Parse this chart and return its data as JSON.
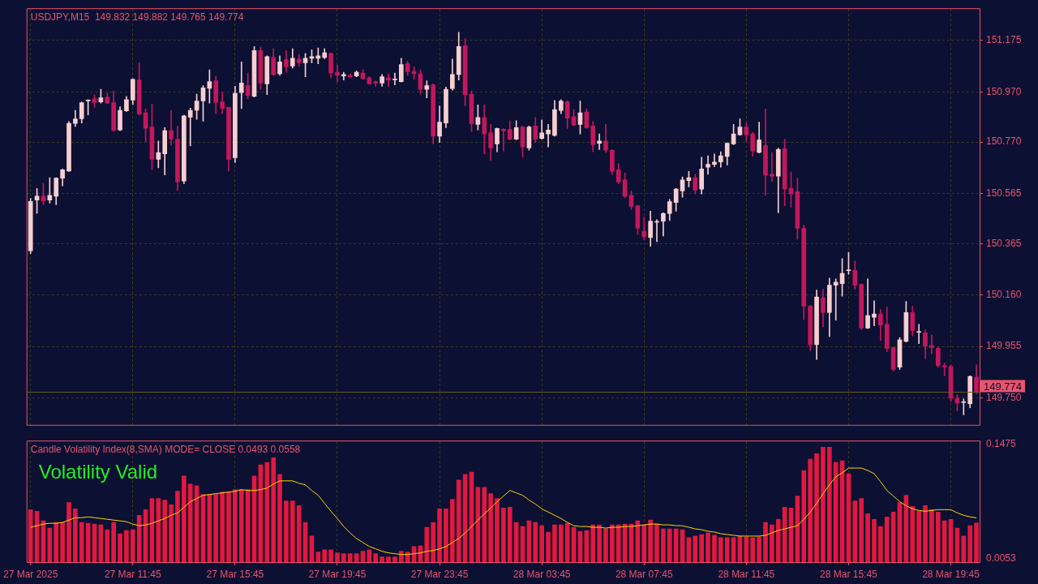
{
  "chart_data": [
    {
      "type": "candlestick",
      "title": "USDJPY,M15  149.832 149.882 149.765 149.774",
      "categories": [
        null,
        null,
        null,
        null,
        null,
        null,
        null,
        null,
        null,
        null,
        null,
        null,
        null,
        null,
        null,
        null,
        null,
        null,
        null,
        null,
        null,
        null,
        null,
        null,
        null,
        null,
        null,
        null,
        null,
        null,
        null,
        null,
        null,
        null,
        null,
        null,
        null,
        null,
        null,
        null,
        null,
        null,
        null,
        null,
        null,
        null,
        null,
        null,
        null,
        null,
        null,
        null,
        null,
        null,
        null,
        null,
        null,
        null,
        null,
        null,
        null,
        null,
        null,
        null,
        null,
        null,
        null,
        null,
        null,
        null,
        null,
        null,
        null,
        null,
        null,
        null,
        null,
        null,
        null,
        null,
        null,
        null,
        null,
        null,
        null,
        null,
        null,
        null,
        null,
        null,
        null,
        null,
        null,
        null,
        null,
        null,
        null,
        null,
        null,
        null,
        null,
        null,
        null,
        null,
        null,
        null,
        null,
        null,
        null,
        null,
        null,
        null,
        null,
        null,
        null,
        null,
        null,
        null,
        null,
        null,
        null,
        null,
        null,
        null,
        null,
        null,
        null,
        null,
        null,
        null,
        null,
        null,
        null,
        null,
        null,
        null,
        null,
        null,
        null,
        null,
        null,
        null,
        null,
        null,
        null,
        null,
        null,
        null,
        null
      ],
      "ohlc": [
        [
          150.336,
          150.545,
          150.325,
          150.533
        ],
        [
          150.538,
          150.585,
          150.486,
          150.554
        ],
        [
          150.554,
          150.605,
          150.52,
          150.535
        ],
        [
          150.538,
          150.628,
          150.526,
          150.557
        ],
        [
          150.554,
          150.628,
          150.52,
          150.626
        ],
        [
          150.626,
          150.662,
          150.595,
          150.659
        ],
        [
          150.654,
          150.852,
          150.652,
          150.844
        ],
        [
          150.844,
          150.896,
          150.832,
          150.862
        ],
        [
          150.863,
          150.929,
          150.846,
          150.927
        ],
        [
          150.934,
          150.939,
          150.878,
          150.936
        ],
        [
          150.942,
          150.958,
          150.908,
          150.927
        ],
        [
          150.93,
          150.98,
          150.925,
          150.946
        ],
        [
          150.949,
          150.964,
          150.923,
          150.925
        ],
        [
          150.927,
          150.974,
          150.814,
          150.816
        ],
        [
          150.818,
          150.911,
          150.815,
          150.896
        ],
        [
          150.894,
          150.952,
          150.892,
          150.939
        ],
        [
          150.937,
          151.022,
          150.919,
          151.02
        ],
        [
          151.017,
          151.086,
          150.879,
          150.881
        ],
        [
          150.886,
          150.902,
          150.771,
          150.825
        ],
        [
          150.83,
          150.921,
          150.66,
          150.701
        ],
        [
          150.701,
          150.774,
          150.667,
          150.728
        ],
        [
          150.723,
          150.827,
          150.639,
          150.815
        ],
        [
          150.815,
          150.896,
          150.757,
          150.782
        ],
        [
          150.781,
          150.834,
          150.576,
          150.611
        ],
        [
          150.614,
          150.877,
          150.604,
          150.874
        ],
        [
          150.869,
          150.905,
          150.754,
          150.896
        ],
        [
          150.897,
          150.961,
          150.86,
          150.933
        ],
        [
          150.934,
          150.995,
          150.853,
          150.986
        ],
        [
          150.984,
          151.058,
          150.925,
          151.011
        ],
        [
          151.014,
          151.033,
          150.883,
          150.927
        ],
        [
          150.93,
          150.97,
          150.883,
          150.903
        ],
        [
          150.908,
          150.91,
          150.654,
          150.701
        ],
        [
          150.707,
          150.992,
          150.688,
          150.964
        ],
        [
          150.967,
          151.089,
          150.903,
          151.005
        ],
        [
          150.995,
          151.045,
          150.942,
          150.956
        ],
        [
          150.952,
          151.151,
          150.949,
          151.135
        ],
        [
          151.135,
          151.148,
          150.98,
          151.005
        ],
        [
          151.002,
          151.114,
          150.959,
          151.11
        ],
        [
          151.107,
          151.142,
          151.036,
          151.039
        ],
        [
          151.042,
          151.114,
          151.036,
          151.089
        ],
        [
          151.098,
          151.135,
          151.048,
          151.07
        ],
        [
          151.073,
          151.142,
          151.065,
          151.104
        ],
        [
          151.101,
          151.12,
          151.073,
          151.086
        ],
        [
          151.086,
          151.123,
          151.03,
          151.104
        ],
        [
          151.104,
          151.138,
          151.086,
          151.11
        ],
        [
          151.104,
          151.145,
          151.082,
          151.114
        ],
        [
          151.107,
          151.142,
          151.102,
          151.126
        ],
        [
          151.123,
          151.125,
          151.026,
          151.045
        ],
        [
          151.048,
          151.076,
          151.011,
          151.036
        ],
        [
          151.033,
          151.048,
          151.017,
          151.039
        ],
        [
          151.036,
          151.042,
          151.026,
          151.03
        ],
        [
          151.033,
          151.054,
          151.03,
          151.048
        ],
        [
          151.045,
          151.058,
          151.02,
          151.023
        ],
        [
          151.026,
          151.03,
          151.0,
          151.002
        ],
        [
          151.011,
          151.013,
          150.992,
          151.005
        ],
        [
          151.005,
          151.039,
          150.992,
          151.03
        ],
        [
          151.026,
          151.042,
          150.992,
          151.017
        ],
        [
          151.018,
          151.045,
          150.998,
          151.02
        ],
        [
          151.011,
          151.104,
          151.009,
          151.079
        ],
        [
          151.082,
          151.092,
          151.036,
          151.051
        ],
        [
          151.051,
          151.07,
          151.02,
          151.042
        ],
        [
          151.042,
          151.058,
          150.961,
          150.98
        ],
        [
          150.98,
          151.014,
          150.946,
          150.995
        ],
        [
          150.998,
          151.002,
          150.762,
          150.793
        ],
        [
          150.793,
          150.914,
          150.768,
          150.849
        ],
        [
          150.846,
          150.989,
          150.827,
          150.98
        ],
        [
          150.983,
          151.101,
          150.977,
          151.039
        ],
        [
          151.039,
          151.207,
          151.017,
          151.151
        ],
        [
          151.154,
          151.182,
          150.914,
          150.958
        ],
        [
          150.961,
          150.974,
          150.812,
          150.843
        ],
        [
          150.84,
          150.918,
          150.818,
          150.868
        ],
        [
          150.868,
          150.918,
          150.722,
          150.802
        ],
        [
          150.806,
          150.84,
          150.697,
          150.746
        ],
        [
          150.762,
          150.826,
          150.731,
          150.824
        ],
        [
          150.821,
          150.823,
          150.734,
          150.815
        ],
        [
          150.821,
          150.855,
          150.778,
          150.781
        ],
        [
          150.781,
          150.855,
          150.779,
          150.827
        ],
        [
          150.83,
          150.833,
          150.709,
          150.75
        ],
        [
          150.746,
          150.834,
          150.737,
          150.83
        ],
        [
          150.834,
          150.868,
          150.768,
          150.781
        ],
        [
          150.784,
          150.858,
          150.781,
          150.806
        ],
        [
          150.802,
          150.84,
          150.75,
          150.818
        ],
        [
          150.796,
          150.936,
          150.793,
          150.899
        ],
        [
          150.896,
          150.939,
          150.883,
          150.933
        ],
        [
          150.93,
          150.935,
          150.824,
          150.865
        ],
        [
          150.871,
          150.899,
          150.834,
          150.837
        ],
        [
          150.84,
          150.933,
          150.802,
          150.886
        ],
        [
          150.89,
          150.902,
          150.825,
          150.827
        ],
        [
          150.834,
          150.852,
          150.731,
          150.759
        ],
        [
          150.765,
          150.802,
          150.74,
          150.774
        ],
        [
          150.774,
          150.84,
          150.728,
          150.737
        ],
        [
          150.737,
          150.74,
          150.641,
          150.653
        ],
        [
          150.659,
          150.684,
          150.603,
          150.61
        ],
        [
          150.619,
          150.647,
          150.547,
          150.554
        ],
        [
          150.557,
          150.575,
          150.501,
          150.513
        ],
        [
          150.516,
          150.518,
          150.401,
          150.426
        ],
        [
          150.414,
          150.47,
          150.379,
          150.392
        ],
        [
          150.389,
          150.494,
          150.354,
          150.454
        ],
        [
          150.45,
          150.46,
          150.373,
          150.453
        ],
        [
          150.454,
          150.488,
          150.395,
          150.485
        ],
        [
          150.485,
          150.541,
          150.457,
          150.532
        ],
        [
          150.529,
          150.585,
          150.494,
          150.582
        ],
        [
          150.575,
          150.631,
          150.55,
          150.619
        ],
        [
          150.616,
          150.653,
          150.591,
          150.628
        ],
        [
          150.628,
          150.641,
          150.563,
          150.578
        ],
        [
          150.582,
          150.709,
          150.563,
          150.662
        ],
        [
          150.669,
          150.715,
          150.641,
          150.681
        ],
        [
          150.681,
          150.722,
          150.672,
          150.69
        ],
        [
          150.69,
          150.731,
          150.669,
          150.715
        ],
        [
          150.712,
          150.767,
          150.678,
          150.765
        ],
        [
          150.762,
          150.84,
          150.759,
          150.802
        ],
        [
          150.799,
          150.862,
          150.796,
          150.83
        ],
        [
          150.83,
          150.846,
          150.771,
          150.799
        ],
        [
          150.802,
          150.809,
          150.713,
          150.734
        ],
        [
          150.728,
          150.849,
          150.726,
          150.778
        ],
        [
          150.756,
          150.902,
          150.557,
          150.638
        ],
        [
          150.641,
          150.728,
          150.613,
          150.634
        ],
        [
          150.634,
          150.746,
          150.488,
          150.74
        ],
        [
          150.743,
          150.781,
          150.516,
          150.582
        ],
        [
          150.585,
          150.65,
          150.51,
          150.563
        ],
        [
          150.572,
          150.625,
          150.382,
          150.426
        ],
        [
          150.426,
          150.438,
          150.062,
          150.115
        ],
        [
          150.115,
          150.118,
          149.938,
          149.962
        ],
        [
          149.962,
          150.18,
          149.903,
          150.152
        ],
        [
          150.149,
          150.183,
          150.034,
          150.09
        ],
        [
          150.09,
          150.227,
          149.994,
          150.199
        ],
        [
          150.199,
          150.224,
          150.059,
          150.211
        ],
        [
          150.205,
          150.305,
          150.155,
          150.246
        ],
        [
          150.257,
          150.33,
          150.242,
          150.259
        ],
        [
          150.258,
          150.295,
          150.183,
          150.199
        ],
        [
          150.202,
          150.204,
          150.021,
          150.028
        ],
        [
          150.028,
          150.224,
          150.026,
          150.078
        ],
        [
          150.071,
          150.137,
          150.037,
          150.084
        ],
        [
          150.084,
          150.102,
          149.978,
          150.04
        ],
        [
          150.043,
          150.112,
          149.934,
          149.947
        ],
        [
          149.95,
          149.952,
          149.857,
          149.863
        ],
        [
          149.872,
          149.99,
          149.863,
          149.981
        ],
        [
          149.975,
          150.134,
          149.972,
          150.09
        ],
        [
          150.09,
          150.115,
          149.997,
          150.018
        ],
        [
          150.011,
          150.043,
          149.966,
          150.013
        ],
        [
          150.009,
          150.021,
          149.906,
          149.956
        ],
        [
          149.959,
          150.0,
          149.925,
          149.95
        ],
        [
          149.947,
          149.953,
          149.872,
          149.878
        ],
        [
          149.878,
          149.888,
          149.838,
          149.873
        ],
        [
          149.875,
          149.881,
          149.735,
          149.748
        ],
        [
          149.748,
          149.763,
          149.698,
          149.729
        ],
        [
          149.731,
          149.745,
          149.682,
          149.733
        ],
        [
          149.726,
          149.838,
          149.71,
          149.835
        ],
        [
          149.832,
          149.882,
          149.765,
          149.774
        ]
      ],
      "colors": [
        "#f7cfcf",
        "#f7cfcf",
        "#c2185b",
        "#f7cfcf",
        "#f7cfcf",
        "#f7cfcf",
        "#f7cfcf",
        "#f7cfcf",
        "#f7cfcf",
        "#f7cfcf",
        "#c2185b",
        "#f7cfcf",
        "#c2185b",
        "#c2185b",
        "#f7cfcf",
        "#f7cfcf",
        "#f7cfcf",
        "#c2185b",
        "#c2185b",
        "#c2185b",
        "#f7cfcf",
        "#f7cfcf",
        "#c2185b",
        "#c2185b",
        "#f7cfcf",
        "#f7cfcf",
        "#f7cfcf",
        "#f7cfcf",
        "#f7cfcf",
        "#c2185b",
        "#c2185b",
        "#c2185b",
        "#f7cfcf",
        "#f7cfcf",
        "#c2185b",
        "#f7cfcf",
        "#c2185b",
        "#f7cfcf",
        "#c2185b",
        "#f7cfcf",
        "#c2185b",
        "#f7cfcf",
        "#c2185b",
        "#f7cfcf",
        "#f7cfcf",
        "#f7cfcf",
        "#f7cfcf",
        "#c2185b",
        "#c2185b",
        "#f7cfcf",
        "#c2185b",
        "#f7cfcf",
        "#c2185b",
        "#c2185b",
        "#c2185b",
        "#f7cfcf",
        "#c2185b",
        "#f7cfcf",
        "#f7cfcf",
        "#c2185b",
        "#c2185b",
        "#c2185b",
        "#f7cfcf",
        "#c2185b",
        "#f7cfcf",
        "#f7cfcf",
        "#f7cfcf",
        "#f7cfcf",
        "#c2185b",
        "#c2185b",
        "#f7cfcf",
        "#c2185b",
        "#c2185b",
        "#f7cfcf",
        "#c2185b",
        "#c2185b",
        "#f7cfcf",
        "#c2185b",
        "#f7cfcf",
        "#c2185b",
        "#f7cfcf",
        "#f7cfcf",
        "#f7cfcf",
        "#f7cfcf",
        "#c2185b",
        "#c2185b",
        "#f7cfcf",
        "#c2185b",
        "#c2185b",
        "#f7cfcf",
        "#c2185b",
        "#c2185b",
        "#c2185b",
        "#c2185b",
        "#c2185b",
        "#c2185b",
        "#c2185b",
        "#f7cfcf",
        "#f7cfcf",
        "#f7cfcf",
        "#f7cfcf",
        "#f7cfcf",
        "#f7cfcf",
        "#f7cfcf",
        "#c2185b",
        "#f7cfcf",
        "#f7cfcf",
        "#f7cfcf",
        "#f7cfcf",
        "#f7cfcf",
        "#f7cfcf",
        "#f7cfcf",
        "#c2185b",
        "#c2185b",
        "#f7cfcf",
        "#c2185b",
        "#c2185b",
        "#f7cfcf",
        "#c2185b",
        "#c2185b",
        "#c2185b",
        "#c2185b",
        "#c2185b",
        "#f7cfcf",
        "#c2185b",
        "#f7cfcf",
        "#f7cfcf",
        "#f7cfcf",
        "#f7cfcf",
        "#c2185b",
        "#c2185b",
        "#f7cfcf",
        "#f7cfcf",
        "#c2185b",
        "#c2185b",
        "#c2185b",
        "#f7cfcf",
        "#f7cfcf",
        "#c2185b",
        "#f7cfcf",
        "#c2185b",
        "#c2185b",
        "#c2185b",
        "#c2185b",
        "#c2185b",
        "#c2185b",
        "#f7cfcf",
        "#f7cfcf",
        "#c2185b"
      ],
      "ylim": [
        149.642,
        151.3
      ],
      "yticks": [
        151.175,
        {
          "value": 150.97,
          "label": "150.970"
        },
        {
          "value": 150.77,
          "label": "150.770"
        },
        150.565,
        150.365,
        {
          "value": 150.16,
          "label": "150.160"
        },
        149.955,
        {
          "value": 149.75,
          "label": "149.750"
        }
      ],
      "ref_lines": [
        {
          "axis": "y",
          "value": 149.774,
          "label": "149.774",
          "color": "#6b5a22"
        }
      ],
      "tick_labels": "y",
      "grid": true
    },
    {
      "type": "bar",
      "title": "Candle Volatility Index(8,SMA) MODE= CLOSE 0.0493 0.0558",
      "annotations": [
        "Volatility Valid"
      ],
      "categories": [
        "27 Mar 2025",
        null,
        null,
        null,
        null,
        null,
        null,
        null,
        null,
        null,
        null,
        null,
        null,
        null,
        null,
        null,
        "27 Mar 11:45",
        null,
        null,
        null,
        null,
        null,
        null,
        null,
        null,
        null,
        null,
        null,
        null,
        null,
        null,
        null,
        "27 Mar 15:45",
        null,
        null,
        null,
        null,
        null,
        null,
        null,
        null,
        null,
        null,
        null,
        null,
        null,
        null,
        null,
        "27 Mar 19:45",
        null,
        null,
        null,
        null,
        null,
        null,
        null,
        null,
        null,
        null,
        null,
        null,
        null,
        null,
        null,
        "27 Mar 23:45",
        null,
        null,
        null,
        null,
        null,
        null,
        null,
        null,
        null,
        null,
        null,
        null,
        null,
        null,
        null,
        "28 Mar 03:45",
        null,
        null,
        null,
        null,
        null,
        null,
        null,
        null,
        null,
        null,
        null,
        null,
        null,
        null,
        null,
        "28 Mar 07:45",
        null,
        null,
        null,
        null,
        null,
        null,
        null,
        null,
        null,
        null,
        null,
        null,
        null,
        null,
        null,
        "28 Mar 11:45",
        null,
        null,
        null,
        null,
        null,
        null,
        null,
        null,
        null,
        null,
        null,
        null,
        null,
        null,
        null,
        "28 Mar 15:45",
        null,
        null,
        null,
        null,
        null,
        null,
        null,
        null,
        null,
        null,
        null,
        null,
        null,
        null,
        null,
        "28 Mar 19:45",
        null,
        null,
        null,
        null
      ],
      "series": [
        {
          "type": "bar",
          "color": "#e0193f",
          "values": [
            0.066,
            0.064,
            0.052,
            0.043,
            0.05,
            0.05,
            0.075,
            0.067,
            0.05,
            0.049,
            0.048,
            0.047,
            0.041,
            0.05,
            0.036,
            0.04,
            0.041,
            0.059,
            0.066,
            0.08,
            0.08,
            0.078,
            0.072,
            0.089,
            0.108,
            0.098,
            0.096,
            0.085,
            0.085,
            0.085,
            0.088,
            0.088,
            0.091,
            0.091,
            0.091,
            0.108,
            0.122,
            0.125,
            0.131,
            0.11,
            0.077,
            0.077,
            0.071,
            0.05,
            0.033,
            0.013,
            0.016,
            0.016,
            0.012,
            0.011,
            0.011,
            0.011,
            0.014,
            0.016,
            0.011,
            0.007,
            0.007,
            0.007,
            0.014,
            0.013,
            0.02,
            0.021,
            0.044,
            0.05,
            0.067,
            0.067,
            0.079,
            0.103,
            0.11,
            0.113,
            0.094,
            0.094,
            0.086,
            0.08,
            0.068,
            0.069,
            0.05,
            0.045,
            0.052,
            0.05,
            0.046,
            0.038,
            0.047,
            0.047,
            0.049,
            0.044,
            0.039,
            0.04,
            0.047,
            0.047,
            0.042,
            0.047,
            0.047,
            0.048,
            0.048,
            0.052,
            0.047,
            0.053,
            0.048,
            0.042,
            0.042,
            0.042,
            0.041,
            0.031,
            0.033,
            0.035,
            0.037,
            0.034,
            0.031,
            0.031,
            0.031,
            0.033,
            0.032,
            0.031,
            0.032,
            0.05,
            0.047,
            0.054,
            0.069,
            0.068,
            0.083,
            0.115,
            0.129,
            0.136,
            0.144,
            0.144,
            0.125,
            0.127,
            0.111,
            0.077,
            0.08,
            0.061,
            0.054,
            0.045,
            0.057,
            0.063,
            0.075,
            0.084,
            0.07,
            0.064,
            0.071,
            0.066,
            0.063,
            0.052,
            0.054,
            0.043,
            0.033,
            0.046,
            0.0493
          ]
        },
        {
          "type": "line",
          "color": "#ffd700",
          "values": [
            0.044,
            0.046,
            0.048,
            0.049,
            0.049,
            0.05,
            0.053,
            0.056,
            0.056,
            0.057,
            0.056,
            0.055,
            0.054,
            0.053,
            0.052,
            0.051,
            0.048,
            0.046,
            0.047,
            0.049,
            0.052,
            0.055,
            0.059,
            0.062,
            0.069,
            0.076,
            0.08,
            0.084,
            0.085,
            0.086,
            0.087,
            0.088,
            0.089,
            0.091,
            0.09,
            0.09,
            0.091,
            0.093,
            0.098,
            0.102,
            0.102,
            0.102,
            0.099,
            0.097,
            0.09,
            0.084,
            0.074,
            0.064,
            0.055,
            0.045,
            0.037,
            0.03,
            0.025,
            0.02,
            0.017,
            0.014,
            0.012,
            0.011,
            0.01,
            0.01,
            0.011,
            0.012,
            0.014,
            0.015,
            0.017,
            0.02,
            0.025,
            0.03,
            0.037,
            0.045,
            0.053,
            0.061,
            0.068,
            0.076,
            0.083,
            0.09,
            0.087,
            0.084,
            0.078,
            0.073,
            0.067,
            0.063,
            0.059,
            0.055,
            0.05,
            0.046,
            0.045,
            0.045,
            0.044,
            0.044,
            0.043,
            0.044,
            0.044,
            0.045,
            0.045,
            0.046,
            0.047,
            0.048,
            0.048,
            0.047,
            0.047,
            0.046,
            0.046,
            0.044,
            0.042,
            0.041,
            0.039,
            0.038,
            0.036,
            0.035,
            0.034,
            0.033,
            0.033,
            0.033,
            0.033,
            0.034,
            0.037,
            0.04,
            0.042,
            0.044,
            0.046,
            0.054,
            0.063,
            0.074,
            0.086,
            0.097,
            0.107,
            0.112,
            0.118,
            0.118,
            0.118,
            0.115,
            0.111,
            0.101,
            0.09,
            0.083,
            0.076,
            0.071,
            0.067,
            0.065,
            0.064,
            0.065,
            0.066,
            0.066,
            0.066,
            0.062,
            0.059,
            0.057,
            0.0558
          ]
        }
      ],
      "ylim": [
        0.0005,
        0.1513
      ],
      "yticks": [
        0.1475,
        0.0053
      ],
      "grid": "x"
    }
  ]
}
